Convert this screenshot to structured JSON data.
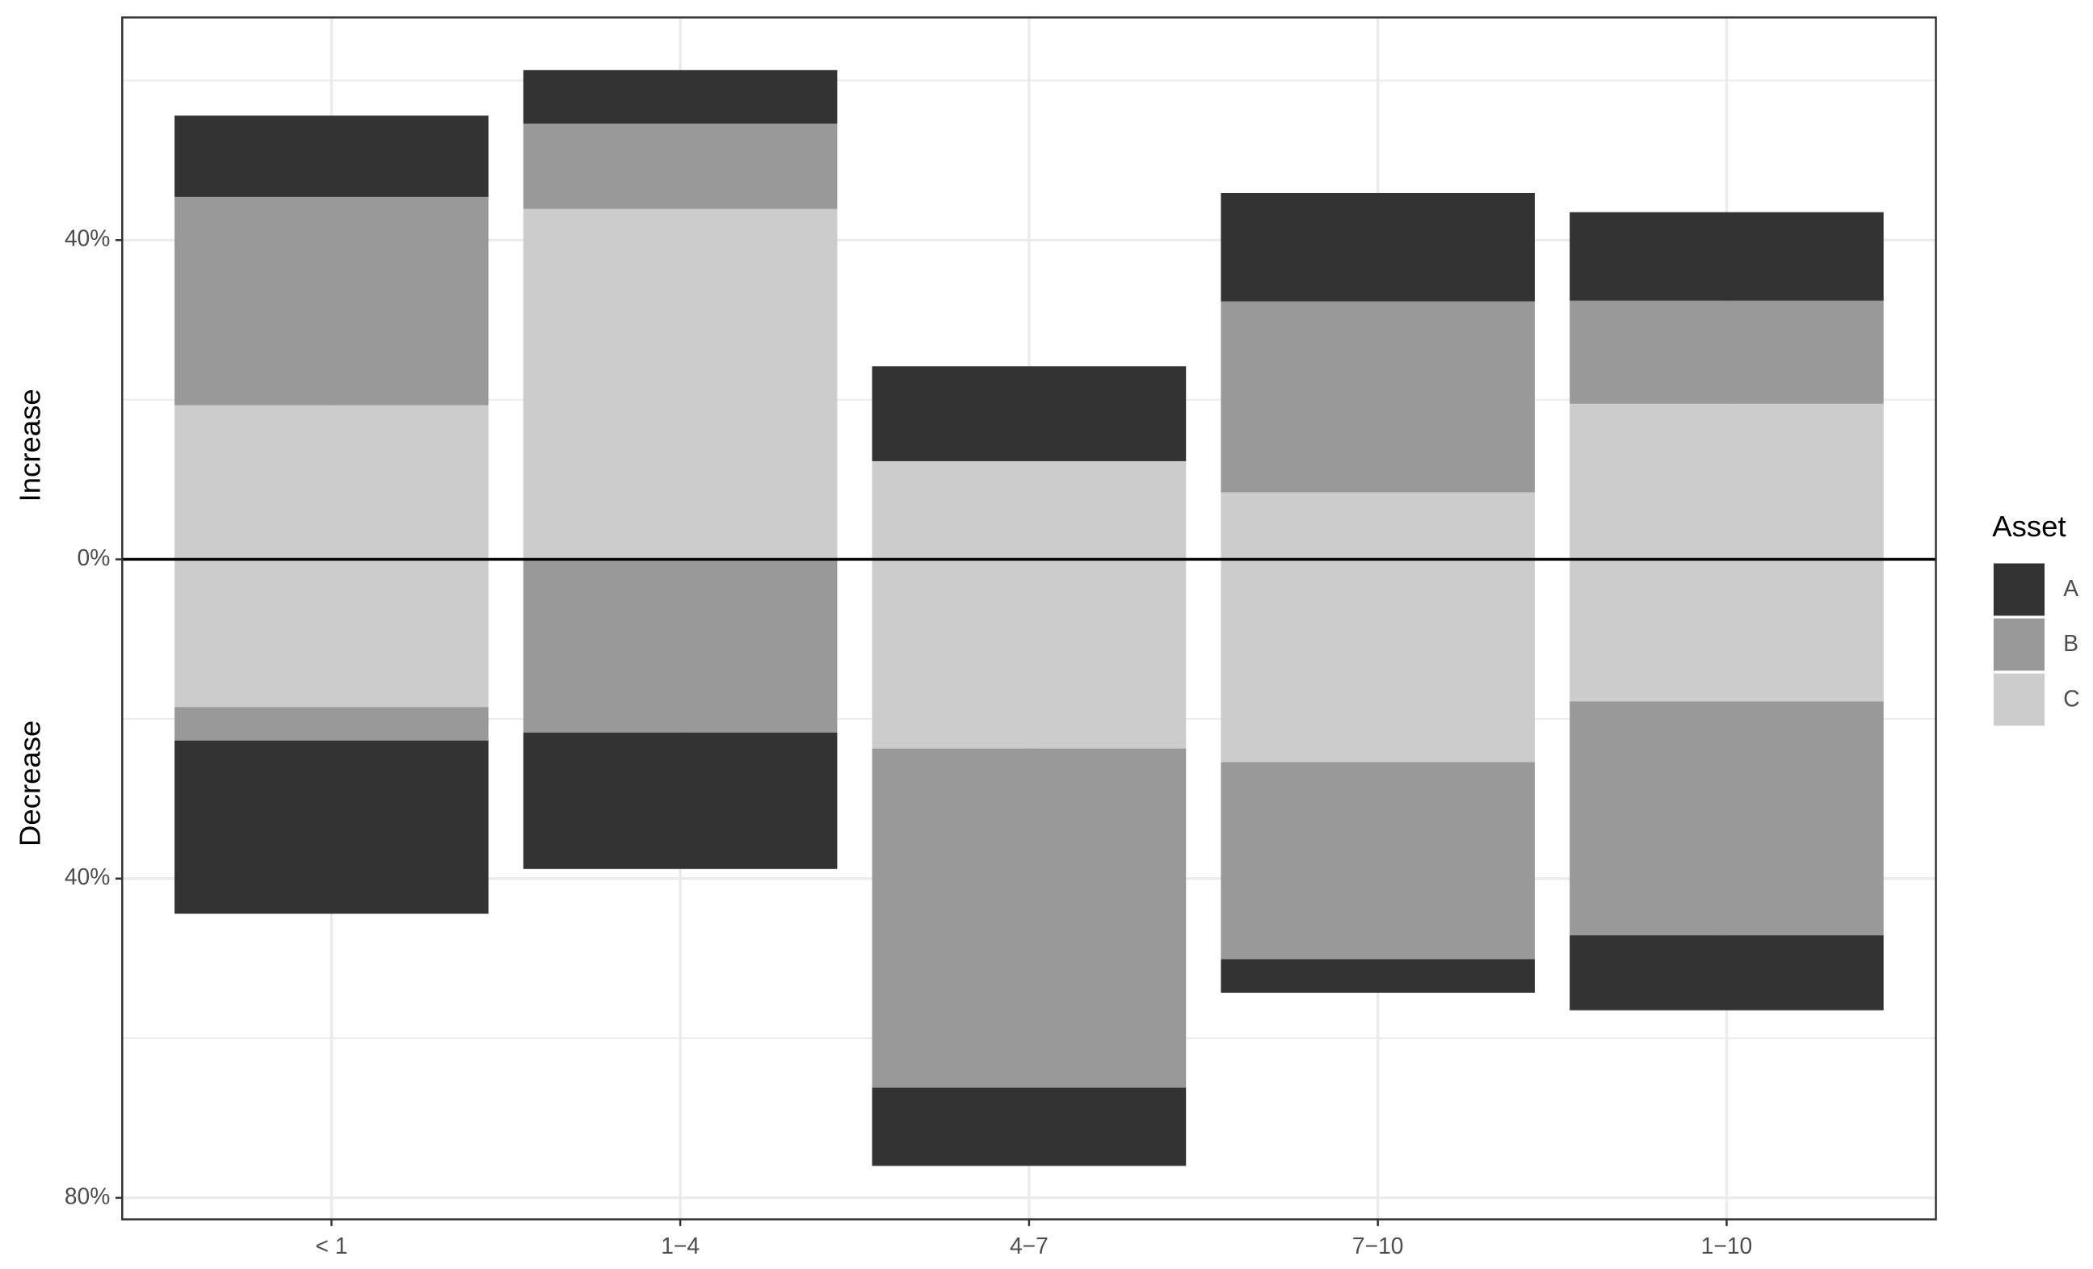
{
  "chart_data": {
    "type": "diverging-stacked-bar",
    "y_labels": {
      "up": "Increase",
      "down": "Decrease"
    },
    "categories": [
      "< 1",
      "1−4",
      "4−7",
      "7−10",
      "1−10"
    ],
    "legend_title": "Asset",
    "series": [
      {
        "name": "A",
        "color": "#333333",
        "increase": [
          10.2,
          6.7,
          11.9,
          13.6,
          11.1
        ],
        "decrease": [
          -21.7,
          -17.1,
          -9.8,
          -4.2,
          -9.4
        ]
      },
      {
        "name": "B",
        "color": "#999999",
        "increase": [
          26.1,
          10.7,
          0,
          23.9,
          12.9
        ],
        "decrease": [
          -4.2,
          -21.7,
          -42.5,
          -24.7,
          -29.3
        ]
      },
      {
        "name": "C",
        "color": "#cccccc",
        "increase": [
          19.3,
          43.9,
          12.3,
          8.4,
          19.5
        ],
        "decrease": [
          -18.5,
          0,
          -23.7,
          -25.4,
          -17.8
        ]
      }
    ],
    "ylim": [
      -82.7,
      67.9
    ],
    "yticks": [
      {
        "value": 40,
        "label": "40%"
      },
      {
        "value": 0,
        "label": "0%"
      },
      {
        "value": -40,
        "label": "40%"
      },
      {
        "value": -80,
        "label": "80%"
      }
    ],
    "minor_yticks": [
      60,
      20,
      -20,
      -60
    ],
    "grid": true
  }
}
